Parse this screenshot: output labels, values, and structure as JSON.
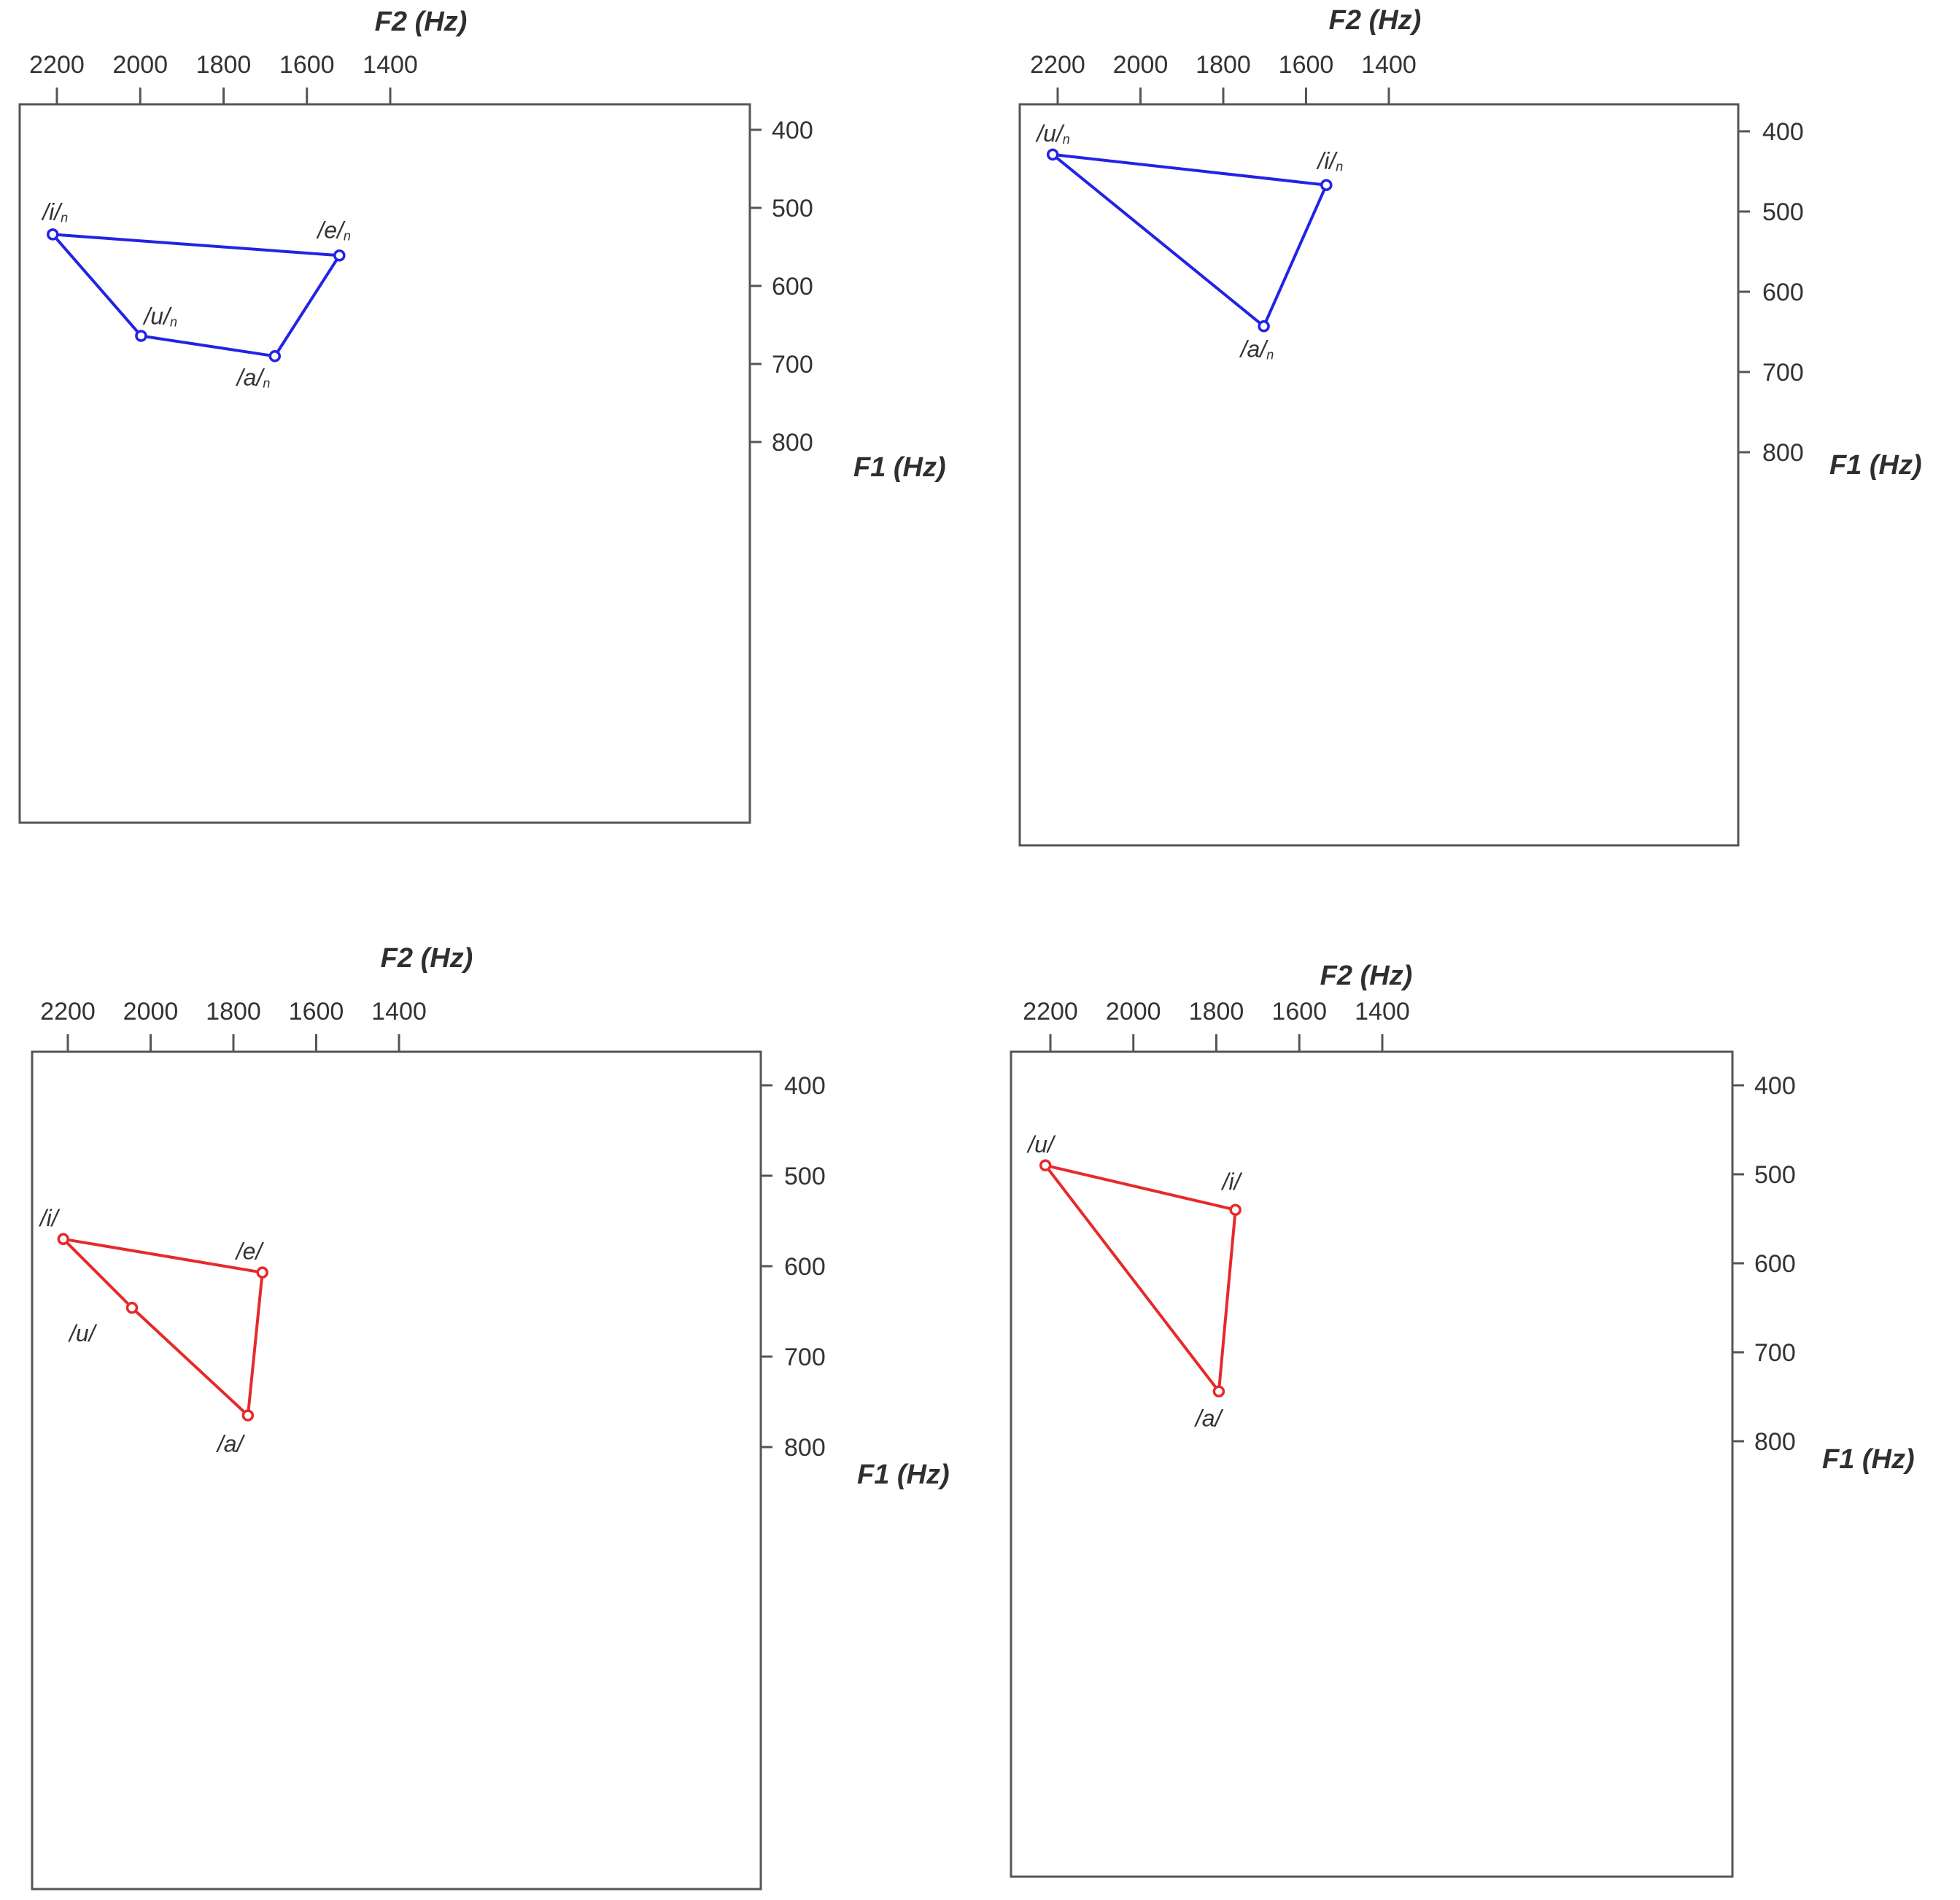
{
  "chart_data": [
    {
      "type": "line",
      "title": "",
      "xlabel": "F2 (Hz)",
      "ylabel": "F1 (Hz)",
      "xlim": [
        2240,
        1400
      ],
      "ylim": [
        390,
        820
      ],
      "x_ticks": [
        "2200",
        "2000",
        "1800",
        "1600",
        "1400"
      ],
      "y_ticks": [
        "400",
        "500",
        "600",
        "700",
        "800"
      ],
      "color": "#2323e6",
      "polygon_order": [
        "/i/",
        "/e/",
        "/a/",
        "/u/"
      ],
      "points": [
        {
          "label": "/i/",
          "sub": "n",
          "f2": 2210,
          "f1": 534
        },
        {
          "label": "/e/",
          "sub": "n",
          "f2": 1522,
          "f1": 561
        },
        {
          "label": "/a/",
          "sub": "n",
          "f2": 1677,
          "f1": 690
        },
        {
          "label": "/u/",
          "sub": "n",
          "f2": 1998,
          "f1": 664
        }
      ]
    },
    {
      "type": "line",
      "title": "",
      "xlabel": "F2 (Hz)",
      "ylabel": "F1 (Hz)",
      "xlim": [
        2240,
        1400
      ],
      "ylim": [
        390,
        820
      ],
      "x_ticks": [
        "2200",
        "2000",
        "1800",
        "1600",
        "1400"
      ],
      "y_ticks": [
        "400",
        "500",
        "600",
        "700",
        "800"
      ],
      "color": "#2323e6",
      "polygon_order": [
        "/u/",
        "/i/",
        "/a/"
      ],
      "points": [
        {
          "label": "/u/",
          "sub": "n",
          "f2": 2212,
          "f1": 429
        },
        {
          "label": "/i/",
          "sub": "n",
          "f2": 1551,
          "f1": 467
        },
        {
          "label": "/a/",
          "sub": "n",
          "f2": 1702,
          "f1": 643
        }
      ]
    },
    {
      "type": "line",
      "title": "",
      "xlabel": "F2 (Hz)",
      "ylabel": "F1 (Hz)",
      "xlim": [
        2240,
        1400
      ],
      "ylim": [
        390,
        820
      ],
      "x_ticks": [
        "2200",
        "2000",
        "1800",
        "1600",
        "1400"
      ],
      "y_ticks": [
        "400",
        "500",
        "600",
        "700",
        "800"
      ],
      "color": "#e62a2a",
      "polygon_order": [
        "/i/",
        "/e/",
        "/a/",
        "/u/"
      ],
      "points": [
        {
          "label": "/i/",
          "sub": "",
          "f2": 2211,
          "f1": 570
        },
        {
          "label": "/e/",
          "sub": "",
          "f2": 1730,
          "f1": 607
        },
        {
          "label": "/a/",
          "sub": "",
          "f2": 1765,
          "f1": 765
        },
        {
          "label": "/u/",
          "sub": "",
          "f2": 2045,
          "f1": 646
        }
      ]
    },
    {
      "type": "line",
      "title": "",
      "xlabel": "F2 (Hz)",
      "ylabel": "F1 (Hz)",
      "xlim": [
        2240,
        1400
      ],
      "ylim": [
        390,
        820
      ],
      "x_ticks": [
        "2200",
        "2000",
        "1800",
        "1600",
        "1400"
      ],
      "y_ticks": [
        "400",
        "500",
        "600",
        "700",
        "800"
      ],
      "color": "#e62a2a",
      "polygon_order": [
        "/u/",
        "/i/",
        "/a/"
      ],
      "points": [
        {
          "label": "/u/",
          "sub": "",
          "f2": 2212,
          "f1": 490
        },
        {
          "label": "/i/",
          "sub": "",
          "f2": 1754,
          "f1": 540
        },
        {
          "label": "/a/",
          "sub": "",
          "f2": 1794,
          "f1": 744
        }
      ]
    }
  ]
}
